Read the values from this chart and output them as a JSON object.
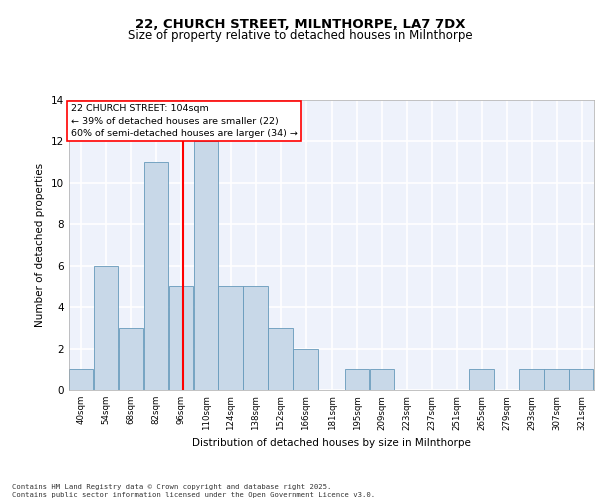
{
  "title_line1": "22, CHURCH STREET, MILNTHORPE, LA7 7DX",
  "title_line2": "Size of property relative to detached houses in Milnthorpe",
  "xlabel": "Distribution of detached houses by size in Milnthorpe",
  "ylabel": "Number of detached properties",
  "bins": [
    40,
    54,
    68,
    82,
    96,
    110,
    124,
    138,
    152,
    166,
    181,
    195,
    209,
    223,
    237,
    251,
    265,
    279,
    293,
    307,
    321
  ],
  "counts": [
    1,
    6,
    3,
    11,
    5,
    12,
    5,
    5,
    3,
    2,
    0,
    1,
    1,
    0,
    0,
    0,
    1,
    0,
    1,
    1,
    1
  ],
  "bar_color": "#c8d8e8",
  "bar_edgecolor": "#6699bb",
  "redline_x": 104,
  "annotation_text": "22 CHURCH STREET: 104sqm\n← 39% of detached houses are smaller (22)\n60% of semi-detached houses are larger (34) →",
  "annotation_box_color": "white",
  "annotation_box_edgecolor": "red",
  "redline_color": "red",
  "ylim": [
    0,
    14
  ],
  "yticks": [
    0,
    2,
    4,
    6,
    8,
    10,
    12,
    14
  ],
  "bg_color": "#eef2fb",
  "grid_color": "white",
  "footnote": "Contains HM Land Registry data © Crown copyright and database right 2025.\nContains public sector information licensed under the Open Government Licence v3.0.",
  "bin_width": 14
}
